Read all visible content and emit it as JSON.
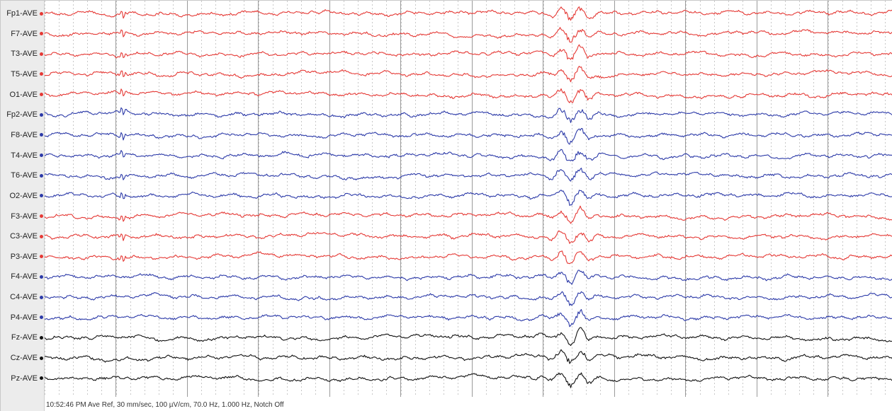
{
  "status_text": "10:52:46 PM Ave Ref, 30 mm/sec, 100 µV/cm, 70.0 Hz, 1.000 Hz, Notch Off",
  "colors": {
    "left": "#e53935",
    "right": "#2c3aa8",
    "midline": "#111111",
    "major_grid": "#9a9a9a",
    "minor_grid": "#c8c8c8"
  },
  "channels": [
    {
      "label": "Fp1-AVE",
      "side": "left"
    },
    {
      "label": "F7-AVE",
      "side": "left"
    },
    {
      "label": "T3-AVE",
      "side": "left"
    },
    {
      "label": "T5-AVE",
      "side": "left"
    },
    {
      "label": "O1-AVE",
      "side": "left"
    },
    {
      "label": "Fp2-AVE",
      "side": "right"
    },
    {
      "label": "F8-AVE",
      "side": "right"
    },
    {
      "label": "T4-AVE",
      "side": "right"
    },
    {
      "label": "T6-AVE",
      "side": "right"
    },
    {
      "label": "O2-AVE",
      "side": "right"
    },
    {
      "label": "F3-AVE",
      "side": "left"
    },
    {
      "label": "C3-AVE",
      "side": "left"
    },
    {
      "label": "P3-AVE",
      "side": "left"
    },
    {
      "label": "F4-AVE",
      "side": "right"
    },
    {
      "label": "C4-AVE",
      "side": "right"
    },
    {
      "label": "P4-AVE",
      "side": "right"
    },
    {
      "label": "Fz-AVE",
      "side": "midline"
    },
    {
      "label": "Cz-AVE",
      "side": "midline"
    },
    {
      "label": "Pz-AVE",
      "side": "midline"
    }
  ]
}
